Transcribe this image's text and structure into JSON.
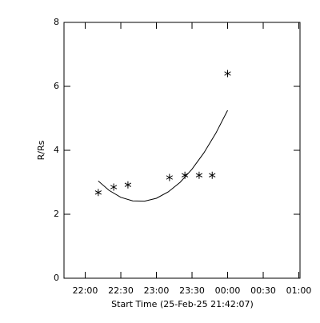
{
  "chart_data": {
    "type": "scatter",
    "xlabel": "Start Time (25-Feb-25 21:42:07)",
    "ylabel": "R/Rs",
    "x": [
      "22:11",
      "22:24",
      "22:36",
      "23:11",
      "23:24",
      "23:36",
      "23:47",
      "00:00"
    ],
    "values": [
      2.68,
      2.85,
      2.92,
      3.15,
      3.22,
      3.22,
      3.22,
      6.4
    ],
    "fit": {
      "x": [
        "22:11",
        "22:20",
        "22:30",
        "22:40",
        "22:50",
        "23:00",
        "23:10",
        "23:20",
        "23:30",
        "23:40",
        "23:50",
        "00:00"
      ],
      "values": [
        3.04,
        2.75,
        2.53,
        2.42,
        2.41,
        2.5,
        2.7,
        3.0,
        3.41,
        3.92,
        4.53,
        5.25
      ]
    },
    "color": "#000000",
    "xlim": [
      "21:42:07",
      "01:01"
    ],
    "xticks": [
      "22:00",
      "22:30",
      "23:00",
      "23:30",
      "00:00",
      "00:30",
      "01:00"
    ],
    "ylim": [
      0,
      8
    ],
    "yticks": [
      0,
      2,
      4,
      6,
      8
    ]
  }
}
